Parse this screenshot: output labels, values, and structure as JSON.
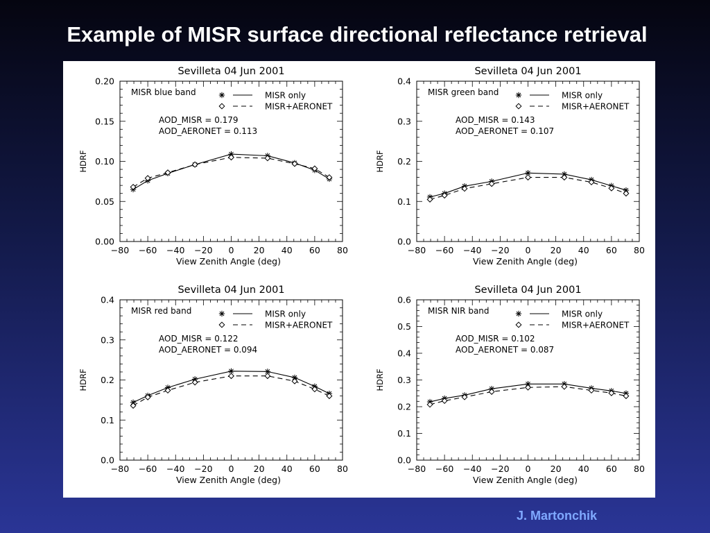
{
  "slide": {
    "title": "Example of MISR surface directional reflectance retrieval",
    "author": "J. Martonchik"
  },
  "chart_data": [
    {
      "type": "line",
      "title": "Sevilleta 04 Jun 2001",
      "band": "MISR blue band",
      "xlabel": "View Zenith Angle (deg)",
      "ylabel": "HDRF",
      "xlim": [
        -80,
        80
      ],
      "ylim": [
        0.0,
        0.2
      ],
      "xticks": [
        "−80",
        "−60",
        "−40",
        "−20",
        "0",
        "20",
        "40",
        "60",
        "80"
      ],
      "yticks": [
        "0.00",
        "0.05",
        "0.10",
        "0.15",
        "0.20"
      ],
      "annotations": [
        "AOD_MISR = 0.179",
        "AOD_AERONET = 0.113"
      ],
      "x": [
        -70.5,
        -60,
        -45.6,
        -26.1,
        0,
        26.1,
        45.6,
        60,
        70.5
      ],
      "series": [
        {
          "name": "MISR only",
          "marker": "asterisk",
          "line": "solid",
          "values": [
            0.065,
            0.076,
            0.085,
            0.096,
            0.109,
            0.107,
            0.098,
            0.089,
            0.078
          ]
        },
        {
          "name": "MISR+AERONET",
          "marker": "diamond",
          "line": "dashed",
          "values": [
            0.068,
            0.079,
            0.086,
            0.096,
            0.105,
            0.104,
            0.097,
            0.091,
            0.08
          ]
        }
      ],
      "legend": "top-right",
      "grid": false
    },
    {
      "type": "line",
      "title": "Sevilleta 04 Jun 2001",
      "band": "MISR green band",
      "xlabel": "View Zenith Angle (deg)",
      "ylabel": "HDRF",
      "xlim": [
        -80,
        80
      ],
      "ylim": [
        0.0,
        0.4
      ],
      "xticks": [
        "−80",
        "−60",
        "−40",
        "−20",
        "0",
        "20",
        "40",
        "60",
        "80"
      ],
      "yticks": [
        "0.0",
        "0.1",
        "0.2",
        "0.3",
        "0.4"
      ],
      "annotations": [
        "AOD_MISR = 0.143",
        "AOD_AERONET = 0.107"
      ],
      "x": [
        -70.5,
        -60,
        -45.6,
        -26.1,
        0,
        26.1,
        45.6,
        60,
        70.5
      ],
      "series": [
        {
          "name": "MISR only",
          "marker": "asterisk",
          "line": "solid",
          "values": [
            0.111,
            0.12,
            0.138,
            0.15,
            0.171,
            0.168,
            0.154,
            0.139,
            0.128
          ]
        },
        {
          "name": "MISR+AERONET",
          "marker": "diamond",
          "line": "dashed",
          "values": [
            0.105,
            0.115,
            0.132,
            0.144,
            0.16,
            0.16,
            0.148,
            0.133,
            0.12
          ]
        }
      ],
      "legend": "top-right",
      "grid": false
    },
    {
      "type": "line",
      "title": "Sevilleta 04 Jun 2001",
      "band": "MISR red band",
      "xlabel": "View Zenith Angle (deg)",
      "ylabel": "HDRF",
      "xlim": [
        -80,
        80
      ],
      "ylim": [
        0.0,
        0.4
      ],
      "xticks": [
        "−80",
        "−60",
        "−40",
        "−20",
        "0",
        "20",
        "40",
        "60",
        "80"
      ],
      "yticks": [
        "0.0",
        "0.1",
        "0.2",
        "0.3",
        "0.4"
      ],
      "annotations": [
        "AOD_MISR = 0.122",
        "AOD_AERONET = 0.094"
      ],
      "x": [
        -70.5,
        -60,
        -45.6,
        -26.1,
        0,
        26.1,
        45.6,
        60,
        70.5
      ],
      "series": [
        {
          "name": "MISR only",
          "marker": "asterisk",
          "line": "solid",
          "values": [
            0.144,
            0.161,
            0.181,
            0.202,
            0.222,
            0.221,
            0.206,
            0.184,
            0.166
          ]
        },
        {
          "name": "MISR+AERONET",
          "marker": "diamond",
          "line": "dashed",
          "values": [
            0.136,
            0.157,
            0.174,
            0.194,
            0.21,
            0.21,
            0.197,
            0.177,
            0.16
          ]
        }
      ],
      "legend": "top-right",
      "grid": false
    },
    {
      "type": "line",
      "title": "Sevilleta 04 Jun 2001",
      "band": "MISR NIR band",
      "xlabel": "View Zenith Angle (deg)",
      "ylabel": "HDRF",
      "xlim": [
        -80,
        80
      ],
      "ylim": [
        0.0,
        0.6
      ],
      "xticks": [
        "−80",
        "−60",
        "−40",
        "−20",
        "0",
        "20",
        "40",
        "60",
        "80"
      ],
      "yticks": [
        "0.0",
        "0.1",
        "0.2",
        "0.3",
        "0.4",
        "0.5",
        "0.6"
      ],
      "annotations": [
        "AOD_MISR = 0.102",
        "AOD_AERONET = 0.087"
      ],
      "x": [
        -70.5,
        -60,
        -45.6,
        -26.1,
        0,
        26.1,
        45.6,
        60,
        70.5
      ],
      "series": [
        {
          "name": "MISR only",
          "marker": "asterisk",
          "line": "solid",
          "values": [
            0.218,
            0.231,
            0.243,
            0.267,
            0.285,
            0.285,
            0.269,
            0.259,
            0.25
          ]
        },
        {
          "name": "MISR+AERONET",
          "marker": "diamond",
          "line": "dashed",
          "values": [
            0.208,
            0.222,
            0.236,
            0.256,
            0.272,
            0.275,
            0.261,
            0.251,
            0.24
          ]
        }
      ],
      "legend": "top-right",
      "grid": false
    }
  ]
}
